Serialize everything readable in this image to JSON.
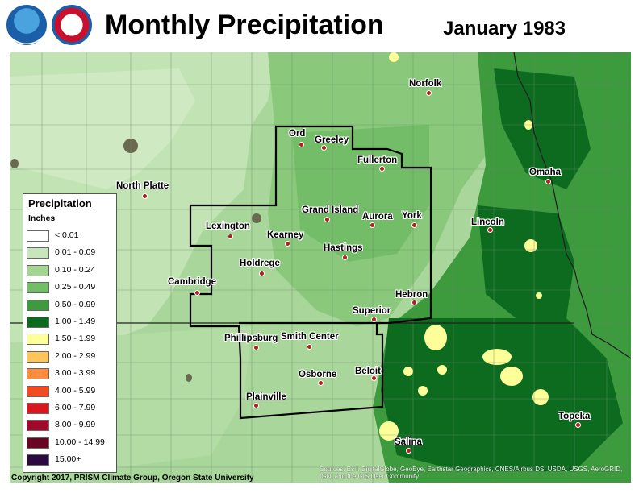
{
  "header": {
    "title": "Monthly Precipitation",
    "subtitle": "January 1983",
    "logos": [
      "noaa-logo",
      "national-weather-service-logo"
    ]
  },
  "cities": [
    {
      "name": "Norfolk"
    },
    {
      "name": "Ord"
    },
    {
      "name": "Greeley"
    },
    {
      "name": "Fullerton"
    },
    {
      "name": "Omaha"
    },
    {
      "name": "North Platte"
    },
    {
      "name": "Grand Island"
    },
    {
      "name": "Aurora"
    },
    {
      "name": "York"
    },
    {
      "name": "Lincoln"
    },
    {
      "name": "Lexington"
    },
    {
      "name": "Kearney"
    },
    {
      "name": "Hastings"
    },
    {
      "name": "Holdrege"
    },
    {
      "name": "Cambridge"
    },
    {
      "name": "Hebron"
    },
    {
      "name": "Superior"
    },
    {
      "name": "Phillipsburg"
    },
    {
      "name": "Smith Center"
    },
    {
      "name": "Beloit"
    },
    {
      "name": "Osborne"
    },
    {
      "name": "Plainville"
    },
    {
      "name": "Topeka"
    },
    {
      "name": "Salina"
    }
  ],
  "legend": {
    "title": "Precipitation",
    "units": "Inches",
    "classes": [
      {
        "label": "< 0.01",
        "color": "#ffffff"
      },
      {
        "label": "0.01 - 0.09",
        "color": "#c8e6bb"
      },
      {
        "label": "0.10 - 0.24",
        "color": "#a4d492"
      },
      {
        "label": "0.25 - 0.49",
        "color": "#74bd68"
      },
      {
        "label": "0.50 - 0.99",
        "color": "#3d9a3d"
      },
      {
        "label": "1.00 - 1.49",
        "color": "#0d6b20"
      },
      {
        "label": "1.50 - 1.99",
        "color": "#ffff99"
      },
      {
        "label": "2.00 - 2.99",
        "color": "#ffc55a"
      },
      {
        "label": "3.00 - 3.99",
        "color": "#ff8c3c"
      },
      {
        "label": "4.00 - 5.99",
        "color": "#f24b24"
      },
      {
        "label": "6.00 - 7.99",
        "color": "#d8181e"
      },
      {
        "label": "8.00 - 9.99",
        "color": "#a00a2a"
      },
      {
        "label": "10.00 - 14.99",
        "color": "#6a0424"
      },
      {
        "label": "15.00+",
        "color": "#2a0a40"
      }
    ]
  },
  "footer": {
    "copyright": "Copyright 2017, PRISM Climate Group, Oregon State University",
    "attribution": "Sources: Esri, DigitalGlobe, GeoEye, Earthstar Geographics, CNES/Airbus DS, USDA, USGS, AeroGRID, IGN, and the GIS User Community"
  }
}
